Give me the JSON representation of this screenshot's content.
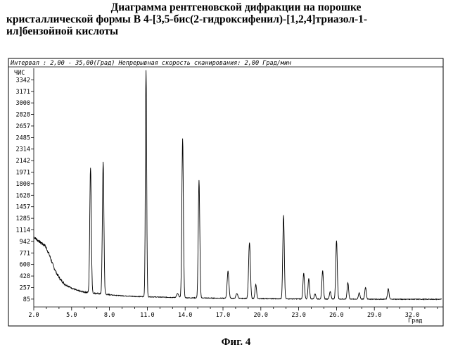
{
  "page": {
    "title_lines": [
      "Диаграмма рентгеновской дифракции на порошке",
      "кристаллической формы В 4-[3,5-бис(2-гидроксифенил)-[1,2,4]триазол-1-",
      "ил]бензойной кислоты"
    ],
    "figure_caption": "Фиг. 4"
  },
  "chart_data": {
    "type": "line",
    "header": "Интервал : 2,00 - 35,00(Град) Непрерывная скорость сканирования: 2,00 Град/мин",
    "ylabel": "ЧИС",
    "xlabel": "Град",
    "xlim": [
      2.0,
      35.0
    ],
    "ylim": [
      0,
      3514
    ],
    "x_ticks": [
      2.0,
      5.0,
      8.0,
      11.0,
      14.0,
      17.0,
      20.0,
      23.0,
      26.0,
      29.0,
      32.0
    ],
    "x_tick_labels": [
      "2.0",
      "5.0",
      "8.0",
      "11.0",
      "14.0",
      "17.0",
      "20.0",
      "23.0",
      "26.0",
      "29.0",
      "32.0"
    ],
    "y_ticks": [
      85,
      257,
      428,
      600,
      771,
      942,
      1114,
      1285,
      1457,
      1628,
      1800,
      1971,
      2142,
      2314,
      2485,
      2657,
      2828,
      3000,
      3171,
      3342
    ],
    "y_tick_labels": [
      "85",
      "257",
      "428",
      "600",
      "771",
      "942",
      "1114",
      "1285",
      "1457",
      "1628",
      "1800",
      "1971",
      "2142",
      "2314",
      "2485",
      "2657",
      "2828",
      "3000",
      "3171",
      "3342"
    ],
    "grid": false,
    "series": [
      {
        "color": "#000000",
        "baseline": [
          [
            2.0,
            1010
          ],
          [
            2.3,
            960
          ],
          [
            2.6,
            920
          ],
          [
            2.9,
            880
          ],
          [
            3.2,
            760
          ],
          [
            3.5,
            600
          ],
          [
            3.8,
            470
          ],
          [
            4.1,
            380
          ],
          [
            4.5,
            300
          ],
          [
            5.0,
            250
          ],
          [
            5.5,
            210
          ],
          [
            6.0,
            190
          ],
          [
            7.0,
            170
          ],
          [
            8.0,
            150
          ],
          [
            9.0,
            135
          ],
          [
            10.0,
            125
          ],
          [
            12.0,
            115
          ],
          [
            14.0,
            105
          ],
          [
            17.0,
            98
          ],
          [
            20.0,
            92
          ],
          [
            23.0,
            88
          ],
          [
            26.0,
            86
          ],
          [
            29.0,
            84
          ],
          [
            32.0,
            83
          ],
          [
            35.0,
            82
          ]
        ],
        "peaks": [
          {
            "x": 6.5,
            "y": 2040,
            "w": 0.06
          },
          {
            "x": 7.5,
            "y": 2120,
            "w": 0.06
          },
          {
            "x": 10.9,
            "y": 3480,
            "w": 0.05
          },
          {
            "x": 13.4,
            "y": 165,
            "w": 0.08
          },
          {
            "x": 13.8,
            "y": 2470,
            "w": 0.06
          },
          {
            "x": 15.1,
            "y": 1850,
            "w": 0.06
          },
          {
            "x": 17.4,
            "y": 500,
            "w": 0.07
          },
          {
            "x": 18.1,
            "y": 170,
            "w": 0.07
          },
          {
            "x": 19.1,
            "y": 920,
            "w": 0.07
          },
          {
            "x": 19.6,
            "y": 300,
            "w": 0.06
          },
          {
            "x": 21.8,
            "y": 1330,
            "w": 0.06
          },
          {
            "x": 23.4,
            "y": 470,
            "w": 0.06
          },
          {
            "x": 23.8,
            "y": 390,
            "w": 0.06
          },
          {
            "x": 24.3,
            "y": 165,
            "w": 0.06
          },
          {
            "x": 24.9,
            "y": 510,
            "w": 0.06
          },
          {
            "x": 25.5,
            "y": 200,
            "w": 0.06
          },
          {
            "x": 26.0,
            "y": 950,
            "w": 0.06
          },
          {
            "x": 26.9,
            "y": 330,
            "w": 0.06
          },
          {
            "x": 27.8,
            "y": 180,
            "w": 0.06
          },
          {
            "x": 28.3,
            "y": 260,
            "w": 0.06
          },
          {
            "x": 30.1,
            "y": 240,
            "w": 0.06
          }
        ]
      }
    ]
  }
}
